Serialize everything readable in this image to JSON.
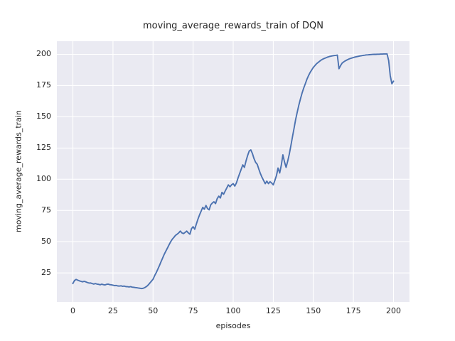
{
  "colors": {
    "figure_background": "#ffffff",
    "axes_background": "#EAEAF2",
    "grid": "#ffffff",
    "line": "#4C72B0",
    "text": "#262626"
  },
  "chart_data": {
    "type": "line",
    "title": "moving_average_rewards_train of DQN",
    "xlabel": "episodes",
    "ylabel": "moving_average_rewards_train",
    "legend": "none",
    "grid": true,
    "x_ticks": [
      0,
      25,
      50,
      75,
      100,
      125,
      150,
      175,
      200
    ],
    "y_ticks": [
      25,
      50,
      75,
      100,
      125,
      150,
      175,
      200
    ],
    "xlim": [
      -10,
      210
    ],
    "ylim": [
      1.8,
      210.5
    ],
    "series": [
      {
        "name": "moving_average_rewards_train",
        "x_description": "episode index, 0 to 200, step 1",
        "values": [
          16.5,
          19,
          19.8,
          19.2,
          18.7,
          18.3,
          17.9,
          18.3,
          17.9,
          17.4,
          16.9,
          17,
          16.5,
          16.1,
          16.5,
          16.1,
          15.9,
          15.5,
          16,
          15.6,
          15.4,
          15.9,
          16.1,
          15.6,
          15.5,
          15.2,
          14.9,
          15,
          14.6,
          14.5,
          14.7,
          14.3,
          14.5,
          14.1,
          14,
          13.8,
          14,
          13.6,
          13.5,
          13.3,
          13.1,
          12.9,
          12.7,
          12.5,
          12.8,
          13.4,
          14.2,
          15.4,
          16.9,
          18.4,
          20,
          22.8,
          25.3,
          28,
          31,
          34,
          37,
          40,
          42.5,
          45,
          47.5,
          50,
          52,
          53.5,
          55,
          56,
          57,
          58.5,
          57,
          56.5,
          57.5,
          58.5,
          57,
          56,
          60.5,
          62,
          60,
          64,
          68,
          71.5,
          74.5,
          77.5,
          76,
          79,
          76.5,
          75.5,
          79.5,
          81,
          82,
          80.5,
          84.5,
          86.5,
          85,
          89.5,
          88,
          90.5,
          93,
          95.5,
          94,
          95.5,
          96.5,
          94.5,
          97,
          101,
          104.5,
          108,
          111.5,
          109.5,
          114.5,
          119,
          122.5,
          123.5,
          120.5,
          116.5,
          113.5,
          112,
          108,
          104.5,
          101.5,
          99,
          96.5,
          98.5,
          96.5,
          98,
          97,
          95.5,
          99,
          103,
          109,
          105,
          111,
          119.5,
          114,
          109.5,
          114.5,
          120,
          127,
          134,
          141,
          148,
          154,
          159.5,
          164.5,
          169,
          173,
          176.5,
          180,
          183,
          185.5,
          187.5,
          189.5,
          191,
          192.5,
          193.5,
          194.5,
          195.5,
          196.2,
          196.8,
          197.3,
          197.8,
          198.2,
          198.5,
          198.8,
          199,
          199.2,
          199.4,
          188.5,
          191,
          193,
          194,
          194.8,
          195.5,
          196.1,
          196.6,
          197,
          197.4,
          197.8,
          198.1,
          198.4,
          198.7,
          198.9,
          199.1,
          199.3,
          199.5,
          199.6,
          199.7,
          199.8,
          199.9,
          200,
          200,
          200.1,
          200.1,
          200.2,
          200.2,
          200.3,
          200.3,
          200.4,
          195,
          183,
          176.5,
          178.5
        ]
      }
    ]
  }
}
